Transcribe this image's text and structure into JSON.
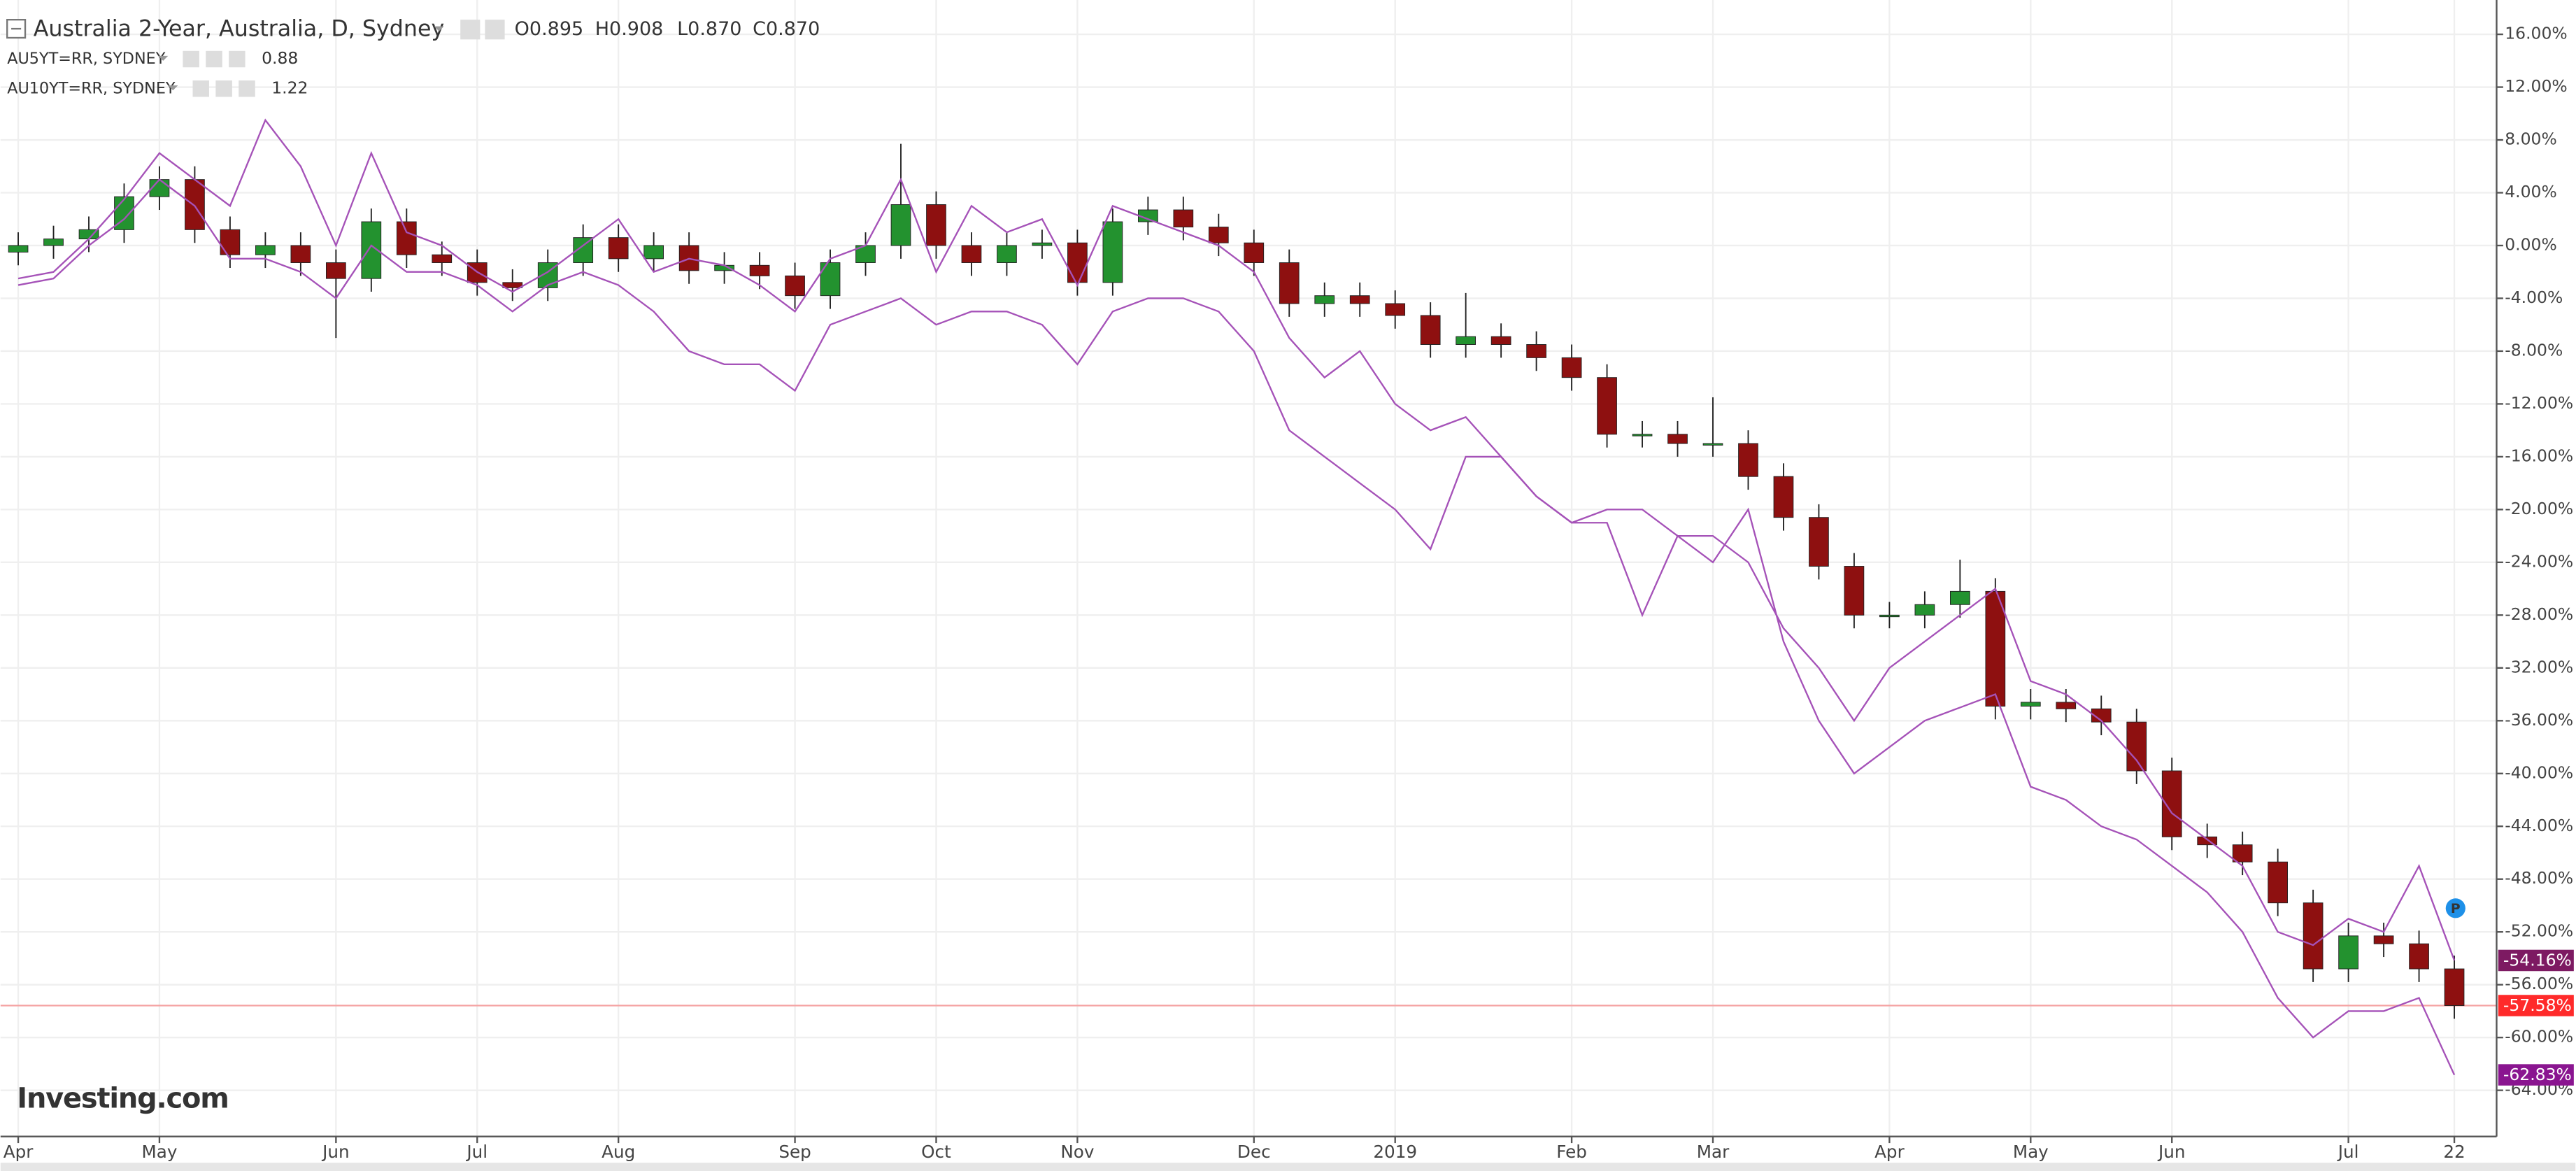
{
  "chart_data": {
    "type": "candlestick",
    "title": "Australia 2-Year, Australia, D, Sydney",
    "ohlc_readout": [
      "O0.895",
      "H0.908",
      "L0.870",
      "C0.870"
    ],
    "watermark": "Investing.com",
    "categories": [
      "Apr",
      null,
      null,
      null,
      "May",
      null,
      null,
      null,
      null,
      "Jun",
      null,
      null,
      null,
      "Jul",
      null,
      null,
      null,
      "Aug",
      null,
      null,
      null,
      null,
      "Sep",
      null,
      null,
      null,
      "Oct",
      null,
      null,
      null,
      "Nov",
      null,
      null,
      null,
      null,
      "Dec",
      null,
      null,
      null,
      "2019",
      null,
      null,
      null,
      null,
      "Feb",
      null,
      null,
      null,
      "Mar",
      null,
      null,
      null,
      null,
      "Apr",
      null,
      null,
      null,
      "May",
      null,
      null,
      null,
      "Jun",
      null,
      null,
      null,
      null,
      "Jul",
      null,
      null,
      "22"
    ],
    "ylim": [
      -67.5,
      18.6
    ],
    "yticks": [
      {
        "value": 16,
        "label": "16.00%"
      },
      {
        "value": 12,
        "label": "12.00%"
      },
      {
        "value": 8,
        "label": "8.00%"
      },
      {
        "value": 4,
        "label": "4.00%"
      },
      {
        "value": 0,
        "label": "0.00%"
      },
      {
        "value": -4,
        "label": "-4.00%"
      },
      {
        "value": -8,
        "label": "-8.00%"
      },
      {
        "value": -12,
        "label": "-12.00%"
      },
      {
        "value": -16,
        "label": "-16.00%"
      },
      {
        "value": -20,
        "label": "-20.00%"
      },
      {
        "value": -24,
        "label": "-24.00%"
      },
      {
        "value": -28,
        "label": "-28.00%"
      },
      {
        "value": -32,
        "label": "-32.00%"
      },
      {
        "value": -36,
        "label": "-36.00%"
      },
      {
        "value": -40,
        "label": "-40.00%"
      },
      {
        "value": -44,
        "label": "-44.00%"
      },
      {
        "value": -48,
        "label": "-48.00%"
      },
      {
        "value": -52,
        "label": "-52.00%"
      },
      {
        "value": -56,
        "label": "-56.00%"
      },
      {
        "value": -60,
        "label": "-60.00%"
      },
      {
        "value": -64,
        "label": "-64.00%"
      }
    ],
    "grid": true,
    "candles": {
      "up_color": "#23922f",
      "down_color": "#8e1010",
      "wick_color": "#222",
      "price_tag": "-57.58%",
      "tag_color": "#ff2a2a",
      "open": [
        -0.5,
        0,
        0.5,
        1.2,
        3.7,
        5,
        1.2,
        -0.7,
        0,
        -1.3,
        -2.5,
        1.8,
        -0.7,
        -1.3,
        -2.8,
        -3.2,
        -1.3,
        0.6,
        -1,
        0,
        -1.9,
        -1.5,
        -2.3,
        -3.8,
        -1.3,
        0,
        3.1,
        0,
        -1.3,
        0,
        0.2,
        -2.8,
        1.8,
        2.7,
        1.4,
        0.2,
        -1.3,
        -4.4,
        -3.8,
        -4.4,
        -5.3,
        -7.5,
        -6.9,
        -7.5,
        -8.5,
        -10,
        -14.3,
        -14.3,
        -15,
        -15,
        -17.5,
        -20.6,
        -24.3,
        -28,
        -28,
        -27.2,
        -26.2,
        -34.9,
        -34.6,
        -35.1,
        -36.1,
        -39.8,
        -44.8,
        -45.4,
        -46.7,
        -49.8,
        -54.8,
        -52.3,
        -52.9,
        -54.8
      ],
      "high": [
        1,
        1.5,
        2.2,
        4.7,
        6,
        6,
        2.2,
        1,
        1,
        -0.3,
        2.8,
        2.8,
        0.3,
        -0.3,
        -1.8,
        -0.3,
        1.6,
        1.6,
        1,
        1,
        -0.5,
        -0.5,
        -1.3,
        -0.3,
        1,
        7.7,
        4.1,
        1,
        1,
        1.2,
        1.2,
        2.8,
        3.7,
        3.7,
        2.4,
        1.2,
        -0.3,
        -2.8,
        -2.8,
        -3.4,
        -4.3,
        -3.6,
        -5.9,
        -6.5,
        -7.5,
        -9,
        -13.3,
        -13.3,
        -11.5,
        -14,
        -16.5,
        -19.6,
        -23.3,
        -27,
        -26.2,
        -23.8,
        -25.2,
        -33.6,
        -33.6,
        -34.1,
        -35.1,
        -38.8,
        -43.8,
        -44.4,
        -45.7,
        -48.8,
        -51.3,
        -51.3,
        -51.9,
        -53.8
      ],
      "low": [
        -1.5,
        -1,
        -0.5,
        0.2,
        2.7,
        0.2,
        -1.7,
        -1.7,
        -2.3,
        -7,
        -3.5,
        -1.7,
        -2.3,
        -3.8,
        -4.2,
        -4.2,
        -2.3,
        -2,
        -2,
        -2.9,
        -2.9,
        -3.3,
        -4.8,
        -4.8,
        -2.3,
        -1,
        -1,
        -2.3,
        -2.3,
        -1,
        -3.8,
        -3.8,
        0.8,
        0.4,
        -0.8,
        -2.3,
        -5.4,
        -5.4,
        -5.4,
        -6.3,
        -8.5,
        -8.5,
        -8.5,
        -9.5,
        -11,
        -15.3,
        -15.3,
        -16,
        -16,
        -18.5,
        -21.6,
        -25.3,
        -29,
        -29,
        -29,
        -28.2,
        -35.9,
        -35.9,
        -36.1,
        -37.1,
        -40.8,
        -45.8,
        -46.4,
        -47.7,
        -50.8,
        -55.8,
        -55.8,
        -53.9,
        -55.8,
        -58.58
      ],
      "close": [
        0,
        0.5,
        1.2,
        3.7,
        5,
        1.2,
        -0.7,
        0,
        -1.3,
        -2.5,
        1.8,
        -0.7,
        -1.3,
        -2.8,
        -3.2,
        -1.3,
        0.6,
        -1,
        0,
        -1.9,
        -1.5,
        -2.3,
        -3.8,
        -1.3,
        0,
        3.1,
        0,
        -1.3,
        0,
        0.2,
        -2.8,
        1.8,
        2.7,
        1.4,
        0.2,
        -1.3,
        -4.4,
        -3.8,
        -4.4,
        -5.3,
        -7.5,
        -6.9,
        -7.5,
        -8.5,
        -10,
        -14.3,
        -14.3,
        -15,
        -15,
        -17.5,
        -20.6,
        -24.3,
        -28,
        -28,
        -27.2,
        -26.2,
        -34.9,
        -34.6,
        -35.1,
        -36.1,
        -39.8,
        -44.8,
        -45.4,
        -46.7,
        -49.8,
        -54.8,
        -52.3,
        -52.9,
        -54.8,
        -57.58
      ]
    },
    "series": [
      {
        "name": "AU5YT=RR, SYDNEY",
        "legend_value": "0.88",
        "color": "#a552b8",
        "tag_color": "#7d1a62",
        "price_tag": "-54.16%",
        "values": [
          -2.5,
          -2,
          0.5,
          3.5,
          7,
          5,
          3,
          9.5,
          6,
          0,
          7,
          1,
          0,
          -2,
          -3.5,
          -2,
          0,
          2,
          -2,
          -1,
          -1.5,
          -3,
          -5,
          -1,
          0,
          5,
          -2,
          3,
          1,
          2,
          -3,
          3,
          2,
          1,
          0,
          -2,
          -7,
          -10,
          -8,
          -12,
          -14,
          -13,
          -16,
          -19,
          -21,
          -20,
          -20,
          -22,
          -22,
          -24,
          -29,
          -32,
          -36,
          -32,
          -30,
          -28,
          -26,
          -33,
          -34,
          -36,
          -39,
          -43,
          -45,
          -47,
          -52,
          -53,
          -51,
          -52,
          -47,
          -54.16
        ]
      },
      {
        "name": "AU10YT=RR, SYDNEY",
        "legend_value": "1.22",
        "color": "#a552b8",
        "tag_color": "#8a1590",
        "price_tag": "-62.83%",
        "values": [
          -3,
          -2.5,
          0,
          2,
          5,
          3,
          -1,
          -1,
          -2,
          -4,
          0,
          -2,
          -2,
          -3,
          -5,
          -3,
          -2,
          -3,
          -5,
          -8,
          -9,
          -9,
          -11,
          -6,
          -5,
          -4,
          -6,
          -5,
          -5,
          -6,
          -9,
          -5,
          -4,
          -4,
          -5,
          -8,
          -14,
          -16,
          -18,
          -20,
          -23,
          -16,
          -16,
          -19,
          -21,
          -21,
          -28,
          -22,
          -24,
          -20,
          -30,
          -36,
          -40,
          -38,
          -36,
          -35,
          -34,
          -41,
          -42,
          -44,
          -45,
          -47,
          -49,
          -52,
          -57,
          -60,
          -58,
          -58,
          -57,
          -62.83
        ]
      }
    ]
  }
}
